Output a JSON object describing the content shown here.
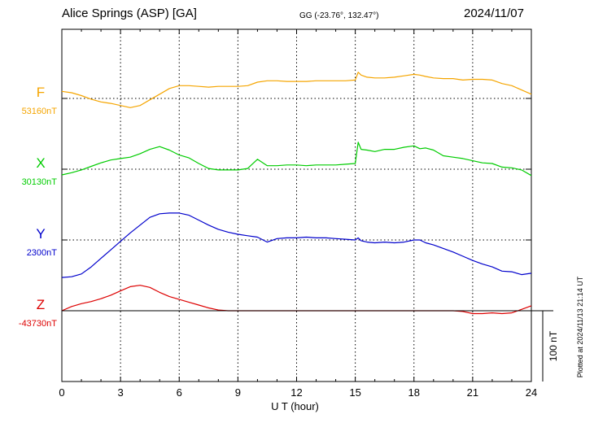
{
  "header": {
    "station": "Alice Springs (ASP)  [GA]",
    "coords": "GG (-23.76°, 132.47°)",
    "date": "2024/11/07"
  },
  "plotted_note": "Plotted at 2024/11/13 21:14 UT",
  "chart_data": {
    "type": "line",
    "xlabel": "U T (hour)",
    "xlim": [
      0,
      24
    ],
    "xticks": [
      0,
      3,
      6,
      9,
      12,
      15,
      18,
      21,
      24
    ],
    "grid": true,
    "scale_bar_label": "100 nT",
    "scale_bar_nT": 100,
    "series": [
      {
        "name": "F",
        "baseline_label": "53160nT",
        "baseline_nT": 53160,
        "color": "#f5a500",
        "x": [
          0,
          0.5,
          1,
          1.5,
          2,
          2.5,
          3,
          3.5,
          4,
          4.5,
          5,
          5.5,
          6,
          6.5,
          7,
          7.5,
          8,
          8.5,
          9,
          9.5,
          10,
          10.5,
          11,
          11.5,
          12,
          12.5,
          13,
          13.5,
          14,
          14.5,
          15,
          15.15,
          15.3,
          15.6,
          16,
          16.5,
          17,
          17.5,
          18,
          18.3,
          18.6,
          19,
          19.5,
          20,
          20.5,
          21,
          21.5,
          22,
          22.5,
          23,
          23.5,
          24
        ],
        "y": [
          53170,
          53168,
          53164,
          53159,
          53155,
          53153,
          53150,
          53147,
          53150,
          53158,
          53166,
          53174,
          53178,
          53178,
          53177,
          53176,
          53177,
          53177,
          53177,
          53178,
          53183,
          53185,
          53185,
          53184,
          53184,
          53184,
          53185,
          53185,
          53185,
          53185,
          53186,
          53197,
          53193,
          53190,
          53189,
          53189,
          53190,
          53192,
          53194,
          53193,
          53191,
          53189,
          53188,
          53188,
          53186,
          53187,
          53187,
          53186,
          53181,
          53178,
          53172,
          53166
        ]
      },
      {
        "name": "X",
        "baseline_label": "30130nT",
        "baseline_nT": 30130,
        "color": "#00cc00",
        "x": [
          0,
          0.5,
          1,
          1.5,
          2,
          2.5,
          3,
          3.5,
          4,
          4.5,
          5,
          5.5,
          6,
          6.5,
          7,
          7.5,
          8,
          8.5,
          9,
          9.5,
          10,
          10.5,
          11,
          11.5,
          12,
          12.5,
          13,
          13.5,
          14,
          14.5,
          15,
          15.15,
          15.3,
          15.6,
          16,
          16.5,
          17,
          17.5,
          18,
          18.3,
          18.6,
          19,
          19.5,
          20,
          20.5,
          21,
          21.5,
          22,
          22.5,
          23,
          23.5,
          24
        ],
        "y": [
          30122,
          30125,
          30129,
          30134,
          30139,
          30143,
          30145,
          30147,
          30152,
          30158,
          30162,
          30157,
          30150,
          30146,
          30138,
          30131,
          30129,
          30129,
          30129,
          30131,
          30144,
          30135,
          30135,
          30136,
          30136,
          30135,
          30136,
          30136,
          30136,
          30137,
          30138,
          30168,
          30158,
          30157,
          30155,
          30158,
          30158,
          30161,
          30163,
          30159,
          30160,
          30157,
          30149,
          30147,
          30145,
          30142,
          30139,
          30138,
          30133,
          30132,
          30129,
          30121
        ]
      },
      {
        "name": "Y",
        "baseline_label": "2300nT",
        "baseline_nT": 2300,
        "color": "#0000cc",
        "x": [
          0,
          0.5,
          1,
          1.5,
          2,
          2.5,
          3,
          3.5,
          4,
          4.5,
          5,
          5.5,
          6,
          6.5,
          7,
          7.5,
          8,
          8.5,
          9,
          9.5,
          10,
          10.5,
          11,
          11.5,
          12,
          12.5,
          13,
          13.5,
          14,
          14.5,
          15,
          15.15,
          15.3,
          15.6,
          16,
          16.5,
          17,
          17.5,
          18,
          18.3,
          18.6,
          19,
          19.5,
          20,
          20.5,
          21,
          21.5,
          22,
          22.5,
          23,
          23.5,
          24
        ],
        "y": [
          2247,
          2248,
          2252,
          2262,
          2274,
          2286,
          2298,
          2310,
          2321,
          2332,
          2337,
          2338,
          2338,
          2335,
          2328,
          2321,
          2315,
          2311,
          2308,
          2306,
          2304,
          2297,
          2302,
          2303,
          2303,
          2304,
          2303,
          2303,
          2302,
          2301,
          2300,
          2303,
          2299,
          2297,
          2296,
          2297,
          2296,
          2297,
          2300,
          2300,
          2296,
          2293,
          2288,
          2283,
          2277,
          2271,
          2266,
          2262,
          2256,
          2255,
          2251,
          2253
        ]
      },
      {
        "name": "Z",
        "baseline_label": "-43730nT",
        "baseline_nT": -43730,
        "color": "#dd0000",
        "x": [
          0,
          0.5,
          1,
          1.5,
          2,
          2.5,
          3,
          3.5,
          4,
          4.5,
          5,
          5.5,
          6,
          6.5,
          7,
          7.5,
          8,
          8.5,
          9,
          9.5,
          10,
          10.5,
          11,
          11.5,
          12,
          12.5,
          13,
          13.5,
          14,
          14.5,
          15,
          15.15,
          15.3,
          15.6,
          16,
          16.5,
          17,
          17.5,
          18,
          18.3,
          18.6,
          19,
          19.5,
          20,
          20.5,
          21,
          21.5,
          22,
          22.5,
          23,
          23.5,
          24
        ],
        "y": [
          -43730,
          -43724,
          -43720,
          -43717,
          -43713,
          -43708,
          -43702,
          -43696,
          -43694,
          -43697,
          -43704,
          -43710,
          -43714,
          -43718,
          -43722,
          -43726,
          -43729,
          -43730,
          -43730,
          -43730,
          -43730,
          -43730,
          -43730,
          -43730,
          -43730,
          -43730,
          -43730,
          -43730,
          -43730,
          -43730,
          -43730,
          -43730,
          -43730,
          -43730,
          -43730,
          -43730,
          -43730,
          -43730,
          -43730,
          -43730,
          -43730,
          -43730,
          -43730,
          -43730,
          -43731,
          -43734,
          -43734,
          -43733,
          -43734,
          -43733,
          -43728,
          -43723
        ]
      }
    ]
  }
}
